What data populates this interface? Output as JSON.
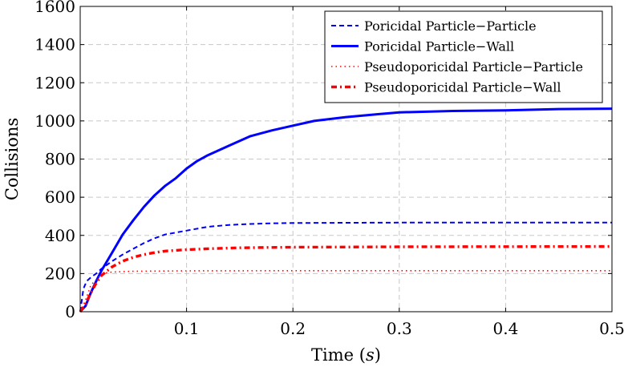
{
  "chart_data": {
    "type": "line",
    "title": "",
    "xlabel": "Time (",
    "xlabel_var": "s",
    "xlabel_end": ")",
    "ylabel": "Collisions",
    "xlim": [
      0,
      0.5
    ],
    "ylim": [
      0,
      1600
    ],
    "grid": true,
    "legend_position": "top-right",
    "x_ticks": [
      0.1,
      0.2,
      0.3,
      0.4,
      0.5
    ],
    "x_tick_labels": [
      "0.1",
      "0.2",
      "0.3",
      "0.4",
      "0.5"
    ],
    "y_ticks": [
      0,
      200,
      400,
      600,
      800,
      1000,
      1200,
      1400,
      1600
    ],
    "y_tick_labels": [
      "0",
      "200",
      "400",
      "600",
      "800",
      "1000",
      "1200",
      "1400",
      "1600"
    ],
    "series": [
      {
        "name": "Poricidal Particle−Particle",
        "color": "#0000ff",
        "style": "dashed",
        "x": [
          0,
          0.003,
          0.006,
          0.01,
          0.015,
          0.02,
          0.03,
          0.04,
          0.05,
          0.06,
          0.07,
          0.08,
          0.1,
          0.12,
          0.14,
          0.16,
          0.18,
          0.2,
          0.25,
          0.3,
          0.35,
          0.4,
          0.45,
          0.5
        ],
        "values": [
          0,
          120,
          160,
          180,
          200,
          225,
          265,
          300,
          330,
          360,
          385,
          405,
          425,
          445,
          455,
          460,
          463,
          465,
          466,
          467,
          467,
          467,
          467,
          467
        ]
      },
      {
        "name": "Poricidal Particle−Wall",
        "color": "#0000ff",
        "style": "solid",
        "x": [
          0,
          0.005,
          0.01,
          0.015,
          0.02,
          0.03,
          0.04,
          0.05,
          0.06,
          0.07,
          0.08,
          0.09,
          0.1,
          0.11,
          0.12,
          0.14,
          0.16,
          0.18,
          0.2,
          0.22,
          0.25,
          0.28,
          0.3,
          0.35,
          0.4,
          0.45,
          0.5
        ],
        "values": [
          0,
          30,
          100,
          160,
          215,
          310,
          405,
          480,
          550,
          610,
          660,
          700,
          750,
          790,
          820,
          870,
          920,
          950,
          975,
          1000,
          1020,
          1035,
          1045,
          1052,
          1055,
          1062,
          1064
        ]
      },
      {
        "name": "Pseudoporicidal Particle−Particle",
        "color": "#ff0000",
        "style": "dotted",
        "x": [
          0,
          0.005,
          0.01,
          0.02,
          0.025,
          0.03,
          0.05,
          0.1,
          0.2,
          0.3,
          0.4,
          0.5
        ],
        "values": [
          0,
          60,
          140,
          195,
          205,
          208,
          212,
          214,
          215,
          215,
          215,
          215
        ]
      },
      {
        "name": "Pseudoporicidal Particle−Wall",
        "color": "#ff0000",
        "style": "dashdot",
        "x": [
          0,
          0.005,
          0.01,
          0.015,
          0.02,
          0.03,
          0.04,
          0.05,
          0.06,
          0.07,
          0.08,
          0.1,
          0.12,
          0.15,
          0.2,
          0.25,
          0.3,
          0.4,
          0.5
        ],
        "values": [
          0,
          40,
          100,
          150,
          190,
          235,
          265,
          285,
          300,
          310,
          318,
          325,
          330,
          335,
          338,
          339,
          340,
          341,
          342
        ]
      }
    ]
  }
}
